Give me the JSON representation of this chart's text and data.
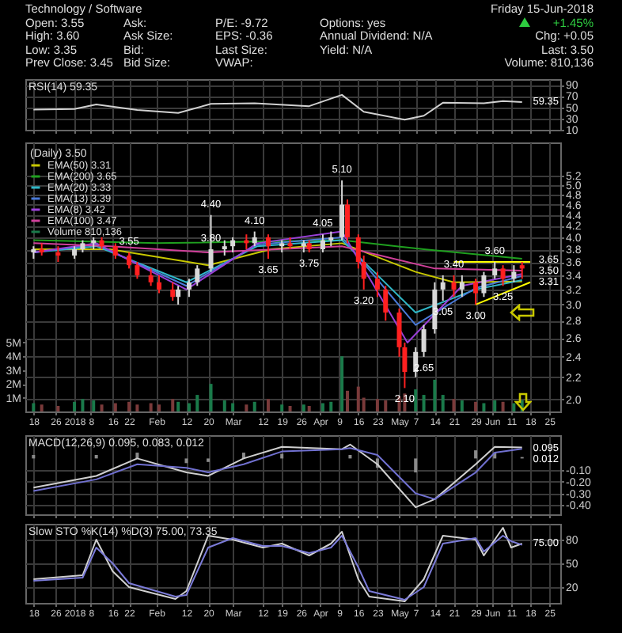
{
  "chart_data": [
    {
      "type": "other",
      "title": "Technology / Software",
      "subtitle": "Friday 15-Jun-2018",
      "annotations": [
        "Open: 3.55",
        "Ask:",
        "P/E: -9.72",
        "Options: yes",
        "+1.45%",
        "High: 3.60",
        "Ask Size:",
        "EPS: -0.36",
        "Annual Dividend: N/A",
        "Chg: +0.05",
        "Low: 3.35",
        "Bid:",
        "Last Size:",
        "Yield: N/A",
        "Last: 3.50",
        "Prev Close: 3.45",
        "Bid Size:",
        "VWAP:",
        "Volume: 810,136"
      ]
    },
    {
      "type": "line",
      "title": "RSI(14) 59.35",
      "tick_labels": "y",
      "grid": true,
      "xlim": [
        "2017-12-15",
        "2018-06-29"
      ],
      "xticks": [
        {
          "value": "2017-12-18",
          "label": null
        },
        {
          "value": "2017-12-26",
          "label": null
        },
        {
          "value": "2018-01-02",
          "label": null
        },
        {
          "value": "2018-01-08",
          "label": null
        },
        {
          "value": "2018-01-16",
          "label": null
        },
        {
          "value": "2018-01-22",
          "label": null
        },
        {
          "value": "2018-02-01",
          "label": null
        },
        {
          "value": "2018-02-12",
          "label": null
        },
        {
          "value": "2018-02-20",
          "label": null
        },
        {
          "value": "2018-03-01",
          "label": null
        },
        {
          "value": "2018-03-12",
          "label": null
        },
        {
          "value": "2018-03-19",
          "label": null
        },
        {
          "value": "2018-03-26",
          "label": null
        },
        {
          "value": "2018-04-02",
          "label": null
        },
        {
          "value": "2018-04-09",
          "label": null
        },
        {
          "value": "2018-04-16",
          "label": null
        },
        {
          "value": "2018-04-23",
          "label": null
        },
        {
          "value": "2018-05-01",
          "label": null
        },
        {
          "value": "2018-05-07",
          "label": null
        },
        {
          "value": "2018-05-14",
          "label": null
        },
        {
          "value": "2018-05-21",
          "label": null
        },
        {
          "value": "2018-05-29",
          "label": null
        },
        {
          "value": "2018-06-04",
          "label": null
        },
        {
          "value": "2018-06-11",
          "label": null
        },
        {
          "value": "2018-06-18",
          "label": null
        },
        {
          "value": "2018-06-25",
          "label": null
        }
      ],
      "ylim": [
        10,
        100
      ],
      "yticks": [
        10,
        30,
        50,
        70,
        90
      ],
      "annotations": [
        "59.35"
      ],
      "series": [
        {
          "color": "#d0d0d0",
          "x": [
            "2017-12-18",
            "2018-01-02",
            "2018-01-10",
            "2018-01-25",
            "2018-02-09",
            "2018-02-21",
            "2018-03-09",
            "2018-03-29",
            "2018-04-10",
            "2018-04-18",
            "2018-05-03",
            "2018-05-10",
            "2018-05-17",
            "2018-06-01",
            "2018-06-08",
            "2018-06-15"
          ],
          "values": [
            46,
            47,
            55,
            45,
            40,
            56,
            57,
            52,
            72,
            42,
            28,
            35,
            58,
            57,
            61,
            59.35
          ]
        }
      ]
    },
    {
      "type": "candlestick",
      "legend_title": "(Daily) 3.50",
      "legend": "top left",
      "grid": true,
      "log": "y",
      "xlim": [
        "2017-12-15",
        "2018-06-29"
      ],
      "xticks": [
        {
          "value": "2017-12-18",
          "label": "18"
        },
        {
          "value": "2017-12-26",
          "label": "26"
        },
        {
          "value": "2018-01-02",
          "label": "2018"
        },
        {
          "value": "2018-01-08",
          "label": "8"
        },
        {
          "value": "2018-01-16",
          "label": "16"
        },
        {
          "value": "2018-01-22",
          "label": "22"
        },
        {
          "value": "2018-02-01",
          "label": "Feb"
        },
        {
          "value": "2018-02-12",
          "label": "12"
        },
        {
          "value": "2018-02-20",
          "label": "20"
        },
        {
          "value": "2018-03-01",
          "label": "Mar"
        },
        {
          "value": "2018-03-12",
          "label": "12"
        },
        {
          "value": "2018-03-19",
          "label": "19"
        },
        {
          "value": "2018-03-26",
          "label": "26"
        },
        {
          "value": "2018-04-02",
          "label": "Apr"
        },
        {
          "value": "2018-04-09",
          "label": "9"
        },
        {
          "value": "2018-04-16",
          "label": "16"
        },
        {
          "value": "2018-04-23",
          "label": "23"
        },
        {
          "value": "2018-05-01",
          "label": "May"
        },
        {
          "value": "2018-05-07",
          "label": "7"
        },
        {
          "value": "2018-05-14",
          "label": "14"
        },
        {
          "value": "2018-05-21",
          "label": "21"
        },
        {
          "value": "2018-05-29",
          "label": "29"
        },
        {
          "value": "2018-06-04",
          "label": "Jun"
        },
        {
          "value": "2018-06-11",
          "label": "11"
        },
        {
          "value": "2018-06-18",
          "label": "18"
        },
        {
          "value": "2018-06-25",
          "label": "25"
        }
      ],
      "ylim": [
        1.9,
        6
      ],
      "yticks": [
        {
          "value": 2,
          "label": "2.0"
        },
        2.2,
        2.4,
        2.6,
        2.8,
        {
          "value": 3,
          "label": "3.0"
        },
        3.2,
        3.4,
        3.6,
        3.8,
        {
          "value": 4,
          "label": "4.0"
        },
        4.2,
        4.4,
        4.6,
        4.8,
        {
          "value": 5,
          "label": "5.0"
        },
        5.2
      ],
      "y2lim": [
        0,
        19500000
      ],
      "y2ticks": [
        {
          "value": 1000000,
          "label": "1M"
        },
        {
          "value": 2000000,
          "label": "2M"
        },
        {
          "value": 3000000,
          "label": "3M"
        },
        {
          "value": 4000000,
          "label": "4M"
        },
        {
          "value": 5000000,
          "label": "5M"
        }
      ],
      "x": [
        "2017-12-18",
        "2017-12-21",
        "2017-12-27",
        "2018-01-02",
        "2018-01-05",
        "2018-01-09",
        "2018-01-12",
        "2018-01-17",
        "2018-01-22",
        "2018-01-25",
        "2018-01-30",
        "2018-02-02",
        "2018-02-07",
        "2018-02-09",
        "2018-02-13",
        "2018-02-16",
        "2018-02-21",
        "2018-02-26",
        "2018-03-01",
        "2018-03-06",
        "2018-03-09",
        "2018-03-14",
        "2018-03-19",
        "2018-03-22",
        "2018-03-27",
        "2018-03-29",
        "2018-04-03",
        "2018-04-06",
        "2018-04-10",
        "2018-04-12",
        "2018-04-16",
        "2018-04-18",
        "2018-04-23",
        "2018-04-26",
        "2018-05-01",
        "2018-05-03",
        "2018-05-07",
        "2018-05-10",
        "2018-05-14",
        "2018-05-17",
        "2018-05-21",
        "2018-05-24",
        "2018-05-29",
        "2018-06-01",
        "2018-06-05",
        "2018-06-08",
        "2018-06-12",
        "2018-06-15"
      ],
      "ohlc": [
        [
          3.75,
          3.85,
          3.65,
          3.8
        ],
        [
          3.8,
          3.9,
          3.7,
          3.75
        ],
        [
          3.75,
          3.85,
          3.6,
          3.7
        ],
        [
          3.7,
          3.85,
          3.65,
          3.8
        ],
        [
          3.8,
          3.95,
          3.75,
          3.9
        ],
        [
          3.9,
          4.0,
          3.8,
          3.95
        ],
        [
          3.95,
          4.0,
          3.8,
          3.85
        ],
        [
          3.85,
          3.9,
          3.65,
          3.7
        ],
        [
          3.7,
          3.75,
          3.5,
          3.55
        ],
        [
          3.55,
          3.6,
          3.35,
          3.4
        ],
        [
          3.4,
          3.5,
          3.25,
          3.3
        ],
        [
          3.3,
          3.4,
          3.15,
          3.2
        ],
        [
          3.2,
          3.3,
          3.05,
          3.1
        ],
        [
          3.1,
          3.25,
          3.0,
          3.2
        ],
        [
          3.2,
          3.35,
          3.1,
          3.3
        ],
        [
          3.3,
          3.55,
          3.25,
          3.5
        ],
        [
          3.5,
          4.4,
          3.45,
          3.8
        ],
        [
          3.8,
          3.95,
          3.7,
          3.85
        ],
        [
          3.85,
          4.0,
          3.75,
          3.95
        ],
        [
          3.95,
          4.05,
          3.8,
          3.9
        ],
        [
          3.9,
          4.1,
          3.85,
          4.0
        ],
        [
          4.0,
          4.05,
          3.65,
          3.85
        ],
        [
          3.85,
          3.95,
          3.75,
          3.9
        ],
        [
          3.9,
          4.0,
          3.8,
          3.85
        ],
        [
          3.85,
          3.95,
          3.75,
          3.9
        ],
        [
          3.9,
          3.95,
          3.75,
          3.8
        ],
        [
          3.8,
          4.05,
          3.75,
          3.95
        ],
        [
          3.95,
          4.1,
          3.85,
          4.0
        ],
        [
          4.0,
          5.1,
          3.95,
          4.6
        ],
        [
          4.6,
          4.7,
          3.9,
          4.0
        ],
        [
          4.0,
          4.05,
          3.5,
          3.6
        ],
        [
          3.6,
          3.7,
          3.2,
          3.35
        ],
        [
          3.35,
          3.45,
          3.1,
          3.2
        ],
        [
          3.2,
          3.25,
          2.8,
          2.9
        ],
        [
          2.9,
          2.95,
          2.4,
          2.5
        ],
        [
          2.5,
          2.55,
          2.1,
          2.25
        ],
        [
          2.25,
          2.5,
          2.2,
          2.45
        ],
        [
          2.45,
          2.75,
          2.4,
          2.7
        ],
        [
          2.7,
          3.3,
          2.65,
          3.2
        ],
        [
          3.2,
          3.4,
          3.05,
          3.3
        ],
        [
          3.3,
          3.4,
          3.1,
          3.2
        ],
        [
          3.2,
          3.4,
          3.1,
          3.3
        ],
        [
          3.3,
          3.35,
          3.0,
          3.15
        ],
        [
          3.15,
          3.45,
          3.1,
          3.4
        ],
        [
          3.4,
          3.6,
          3.35,
          3.5
        ],
        [
          3.5,
          3.55,
          3.25,
          3.35
        ],
        [
          3.35,
          3.55,
          3.3,
          3.45
        ],
        [
          3.55,
          3.6,
          3.35,
          3.5
        ]
      ],
      "colors": [
        "#d8d8d8",
        "#ff2020",
        "#ff2020",
        "#d8d8d8",
        "#d8d8d8",
        "#d8d8d8",
        "#ff2020",
        "#ff2020",
        "#ff2020",
        "#ff2020",
        "#ff2020",
        "#ff2020",
        "#ff2020",
        "#d8d8d8",
        "#d8d8d8",
        "#d8d8d8",
        "#d8d8d8",
        "#d8d8d8",
        "#d8d8d8",
        "#ff2020",
        "#d8d8d8",
        "#ff2020",
        "#d8d8d8",
        "#ff2020",
        "#d8d8d8",
        "#ff2020",
        "#d8d8d8",
        "#d8d8d8",
        "#d8d8d8",
        "#ff2020",
        "#ff2020",
        "#ff2020",
        "#ff2020",
        "#ff2020",
        "#ff2020",
        "#ff2020",
        "#d8d8d8",
        "#d8d8d8",
        "#d8d8d8",
        "#d8d8d8",
        "#ff2020",
        "#d8d8d8",
        "#ff2020",
        "#d8d8d8",
        "#d8d8d8",
        "#ff2020",
        "#d8d8d8",
        "#ff2020"
      ],
      "series": [
        {
          "type": "line",
          "name": "EMA(50) 3.31",
          "color": "#c8c800",
          "x": [
            "2017-12-18",
            "2018-01-15",
            "2018-02-20",
            "2018-03-15",
            "2018-04-10",
            "2018-05-07",
            "2018-05-21",
            "2018-06-15"
          ],
          "values": [
            3.8,
            3.8,
            3.55,
            3.8,
            3.9,
            3.45,
            3.3,
            3.31
          ]
        },
        {
          "type": "line",
          "name": "EMA(200) 3.65",
          "color": "#1fa01f",
          "x": [
            "2017-12-18",
            "2018-02-01",
            "2018-04-10",
            "2018-05-10",
            "2018-06-15"
          ],
          "values": [
            3.95,
            3.9,
            3.95,
            3.8,
            3.65
          ]
        },
        {
          "type": "line",
          "name": "EMA(20) 3.33",
          "color": "#30b8c8",
          "x": [
            "2017-12-18",
            "2018-01-10",
            "2018-02-12",
            "2018-03-10",
            "2018-04-10",
            "2018-05-07",
            "2018-05-29",
            "2018-06-15"
          ],
          "values": [
            3.75,
            3.85,
            3.3,
            3.85,
            3.95,
            2.9,
            3.2,
            3.33
          ]
        },
        {
          "type": "line",
          "name": "EMA(13) 3.39",
          "color": "#4a7ad8",
          "x": [
            "2017-12-18",
            "2018-01-10",
            "2018-02-12",
            "2018-03-10",
            "2018-04-10",
            "2018-05-07",
            "2018-05-29",
            "2018-06-15"
          ],
          "values": [
            3.75,
            3.88,
            3.25,
            3.88,
            4.0,
            2.75,
            3.22,
            3.39
          ]
        },
        {
          "type": "line",
          "name": "EMA(8) 3.42",
          "color": "#9a40d8",
          "x": [
            "2017-12-18",
            "2018-01-10",
            "2018-02-12",
            "2018-03-10",
            "2018-04-10",
            "2018-05-04",
            "2018-05-24",
            "2018-06-15"
          ],
          "values": [
            3.75,
            3.9,
            3.2,
            3.9,
            4.1,
            2.55,
            3.25,
            3.42
          ]
        },
        {
          "type": "line",
          "name": "EMA(100) 3.47",
          "color": "#d0409a",
          "x": [
            "2017-12-18",
            "2018-01-15",
            "2018-02-20",
            "2018-04-10",
            "2018-05-14",
            "2018-06-15"
          ],
          "values": [
            3.9,
            3.85,
            3.75,
            3.85,
            3.5,
            3.47
          ]
        },
        {
          "type": "line",
          "color": "#ffff00",
          "x": [
            "2018-05-21",
            "2018-06-18"
          ],
          "values": [
            3.6,
            3.6
          ]
        },
        {
          "type": "line",
          "color": "#ffff00",
          "x": [
            "2018-05-29",
            "2018-06-18"
          ],
          "values": [
            3.0,
            3.3
          ]
        },
        {
          "type": "bar",
          "axis": "y2",
          "name": "Volume 810,136",
          "color": "#1a7a4a",
          "colors": [
            "#1a7a4a",
            "#7a3a3a",
            "#7a3a3a",
            "#1a7a4a",
            "#1a7a4a",
            "#1a7a4a",
            "#7a3a3a",
            "#7a3a3a",
            "#7a3a3a",
            "#7a3a3a",
            "#7a3a3a",
            "#7a3a3a",
            "#7a3a3a",
            "#1a7a4a",
            "#1a7a4a",
            "#1a7a4a",
            "#1a7a4a",
            "#1a7a4a",
            "#1a7a4a",
            "#7a3a3a",
            "#1a7a4a",
            "#7a3a3a",
            "#1a7a4a",
            "#7a3a3a",
            "#1a7a4a",
            "#7a3a3a",
            "#1a7a4a",
            "#1a7a4a",
            "#1a7a4a",
            "#7a3a3a",
            "#7a3a3a",
            "#7a3a3a",
            "#7a3a3a",
            "#7a3a3a",
            "#7a3a3a",
            "#7a3a3a",
            "#1a7a4a",
            "#1a7a4a",
            "#1a7a4a",
            "#1a7a4a",
            "#7a3a3a",
            "#1a7a4a",
            "#7a3a3a",
            "#1a7a4a",
            "#1a7a4a",
            "#7a3a3a",
            "#1a7a4a",
            "#1a7a4a"
          ],
          "values": [
            600000,
            500000,
            400000,
            700000,
            900000,
            800000,
            500000,
            600000,
            700000,
            500000,
            600000,
            500000,
            900000,
            700000,
            600000,
            1200000,
            2000000,
            800000,
            600000,
            500000,
            700000,
            900000,
            500000,
            400000,
            500000,
            400000,
            600000,
            700000,
            4000000,
            1500000,
            1800000,
            1000000,
            900000,
            800000,
            1100000,
            1300000,
            1600000,
            1200000,
            2300000,
            1200000,
            900000,
            800000,
            700000,
            600000,
            800000,
            700000,
            600000,
            810136
          ]
        }
      ],
      "annotations": [
        {
          "text": "3.55",
          "x": "2018-01-22",
          "y": 3.75
        },
        {
          "text": "3.80",
          "x": "2018-02-21",
          "y": 3.8
        },
        {
          "text": "4.40",
          "x": "2018-02-21",
          "y": 4.4
        },
        {
          "text": "4.10",
          "x": "2018-03-09",
          "y": 4.1
        },
        {
          "text": "3.65",
          "x": "2018-03-14",
          "y": 3.65
        },
        {
          "text": "3.75",
          "x": "2018-03-29",
          "y": 3.75
        },
        {
          "text": "4.05",
          "x": "2018-04-03",
          "y": 4.05
        },
        {
          "text": "5.10",
          "x": "2018-04-10",
          "y": 5.1
        },
        {
          "text": "3.20",
          "x": "2018-04-18",
          "y": 3.2
        },
        {
          "text": "2.10",
          "x": "2018-05-03",
          "y": 2.1
        },
        {
          "text": "2.65",
          "x": "2018-05-10",
          "y": 2.4
        },
        {
          "text": "3.05",
          "x": "2018-05-17",
          "y": 3.05
        },
        {
          "text": "3.40",
          "x": "2018-05-21",
          "y": 3.4
        },
        {
          "text": "3.00",
          "x": "2018-05-29",
          "y": 3.0
        },
        {
          "text": "3.60",
          "x": "2018-06-05",
          "y": 3.6
        },
        {
          "text": "3.25",
          "x": "2018-06-08",
          "y": 3.25
        },
        "3.65",
        "3.50",
        "3.31"
      ]
    },
    {
      "type": "line",
      "title": "MACD(12,26,9) 0.095, 0.083, 0.012",
      "tick_labels": "y",
      "grid": true,
      "xlim": [
        "2017-12-15",
        "2018-06-29"
      ],
      "xticks": [
        {
          "value": "2017-12-18",
          "label": null
        },
        {
          "value": "2017-12-26",
          "label": null
        },
        {
          "value": "2018-01-02",
          "label": null
        },
        {
          "value": "2018-01-08",
          "label": null
        },
        {
          "value": "2018-01-16",
          "label": null
        },
        {
          "value": "2018-01-22",
          "label": null
        },
        {
          "value": "2018-02-01",
          "label": null
        },
        {
          "value": "2018-02-12",
          "label": null
        },
        {
          "value": "2018-02-20",
          "label": null
        },
        {
          "value": "2018-03-01",
          "label": null
        },
        {
          "value": "2018-03-12",
          "label": null
        },
        {
          "value": "2018-03-19",
          "label": null
        },
        {
          "value": "2018-03-26",
          "label": null
        },
        {
          "value": "2018-04-02",
          "label": null
        },
        {
          "value": "2018-04-09",
          "label": null
        },
        {
          "value": "2018-04-16",
          "label": null
        },
        {
          "value": "2018-04-23",
          "label": null
        },
        {
          "value": "2018-05-01",
          "label": null
        },
        {
          "value": "2018-05-07",
          "label": null
        },
        {
          "value": "2018-05-14",
          "label": null
        },
        {
          "value": "2018-05-21",
          "label": null
        },
        {
          "value": "2018-05-29",
          "label": null
        },
        {
          "value": "2018-06-04",
          "label": null
        },
        {
          "value": "2018-06-11",
          "label": null
        },
        {
          "value": "2018-06-18",
          "label": null
        },
        {
          "value": "2018-06-25",
          "label": null
        }
      ],
      "ylim": [
        -0.48,
        0.2
      ],
      "yticks": [
        {
          "value": -0.4,
          "label": "-0.40"
        },
        {
          "value": -0.3,
          "label": "-0.30"
        },
        {
          "value": -0.2,
          "label": "-0.20"
        },
        {
          "value": -0.1,
          "label": "-0.10"
        }
      ],
      "annotations": [
        "0.095",
        "0.012"
      ],
      "series": [
        {
          "type": "bar",
          "color": "#8a8a8a",
          "x": [
            "2017-12-18",
            "2018-01-10",
            "2018-01-25",
            "2018-02-12",
            "2018-02-20",
            "2018-03-05",
            "2018-03-19",
            "2018-04-10",
            "2018-04-13",
            "2018-04-23",
            "2018-05-07",
            "2018-05-14",
            "2018-05-29",
            "2018-06-05",
            "2018-06-15"
          ],
          "values": [
            0.03,
            0.03,
            0.05,
            -0.04,
            -0.03,
            0.05,
            0.04,
            0.0,
            0.03,
            -0.08,
            -0.12,
            0.0,
            0.07,
            0.05,
            0.012
          ]
        },
        {
          "type": "line",
          "color": "#d0d0d0",
          "x": [
            "2017-12-18",
            "2018-01-10",
            "2018-01-25",
            "2018-02-12",
            "2018-02-20",
            "2018-03-05",
            "2018-03-19",
            "2018-04-10",
            "2018-04-13",
            "2018-04-23",
            "2018-05-07",
            "2018-05-14",
            "2018-05-29",
            "2018-06-05",
            "2018-06-15"
          ],
          "values": [
            -0.25,
            -0.15,
            0.0,
            -0.12,
            -0.15,
            0.0,
            0.1,
            0.08,
            0.12,
            -0.05,
            -0.42,
            -0.35,
            -0.05,
            0.1,
            0.095
          ]
        },
        {
          "type": "line",
          "color": "#7070d0",
          "x": [
            "2017-12-18",
            "2018-01-10",
            "2018-01-25",
            "2018-02-12",
            "2018-02-20",
            "2018-03-05",
            "2018-03-19",
            "2018-04-10",
            "2018-04-13",
            "2018-04-23",
            "2018-05-07",
            "2018-05-14",
            "2018-05-29",
            "2018-06-05",
            "2018-06-15"
          ],
          "values": [
            -0.28,
            -0.18,
            -0.05,
            -0.08,
            -0.12,
            -0.05,
            0.06,
            0.08,
            0.09,
            0.03,
            -0.3,
            -0.35,
            -0.12,
            0.05,
            0.083
          ]
        }
      ]
    },
    {
      "type": "line",
      "title": "Slow STO %K(14) %D(3) 75.00, 73.35",
      "grid": true,
      "xlim": [
        "2017-12-15",
        "2018-06-29"
      ],
      "xticks": [
        {
          "value": "2017-12-18",
          "label": "18"
        },
        {
          "value": "2017-12-26",
          "label": "26"
        },
        {
          "value": "2018-01-02",
          "label": "2018"
        },
        {
          "value": "2018-01-08",
          "label": "8"
        },
        {
          "value": "2018-01-16",
          "label": "16"
        },
        {
          "value": "2018-01-22",
          "label": "22"
        },
        {
          "value": "2018-02-01",
          "label": "Feb"
        },
        {
          "value": "2018-02-12",
          "label": "12"
        },
        {
          "value": "2018-02-20",
          "label": "20"
        },
        {
          "value": "2018-03-01",
          "label": "Mar"
        },
        {
          "value": "2018-03-12",
          "label": "12"
        },
        {
          "value": "2018-03-19",
          "label": "19"
        },
        {
          "value": "2018-03-26",
          "label": "26"
        },
        {
          "value": "2018-04-02",
          "label": "Apr"
        },
        {
          "value": "2018-04-09",
          "label": "9"
        },
        {
          "value": "2018-04-16",
          "label": "16"
        },
        {
          "value": "2018-04-23",
          "label": "23"
        },
        {
          "value": "2018-05-01",
          "label": "May"
        },
        {
          "value": "2018-05-07",
          "label": "7"
        },
        {
          "value": "2018-05-14",
          "label": "14"
        },
        {
          "value": "2018-05-21",
          "label": "21"
        },
        {
          "value": "2018-05-29",
          "label": "29"
        },
        {
          "value": "2018-06-04",
          "label": "Jun"
        },
        {
          "value": "2018-06-11",
          "label": "11"
        },
        {
          "value": "2018-06-18",
          "label": "18"
        },
        {
          "value": "2018-06-25",
          "label": "25"
        }
      ],
      "ylim": [
        0,
        100
      ],
      "yticks": [
        20,
        50,
        80
      ],
      "annotations": [
        "75.00"
      ],
      "series": [
        {
          "type": "line",
          "color": "#d0d0d0",
          "x": [
            "2017-12-18",
            "2018-01-05",
            "2018-01-10",
            "2018-01-16",
            "2018-01-22",
            "2018-02-08",
            "2018-02-12",
            "2018-02-20",
            "2018-03-01",
            "2018-03-12",
            "2018-03-19",
            "2018-03-29",
            "2018-04-06",
            "2018-04-10",
            "2018-04-16",
            "2018-04-20",
            "2018-05-03",
            "2018-05-10",
            "2018-05-17",
            "2018-05-29",
            "2018-06-01",
            "2018-06-08",
            "2018-06-11",
            "2018-06-15"
          ],
          "values": [
            30,
            35,
            80,
            40,
            20,
            5,
            15,
            85,
            80,
            70,
            75,
            60,
            75,
            90,
            30,
            8,
            2,
            30,
            85,
            80,
            60,
            95,
            70,
            75
          ]
        },
        {
          "type": "line",
          "color": "#7b7bd8",
          "x": [
            "2017-12-18",
            "2018-01-05",
            "2018-01-10",
            "2018-01-16",
            "2018-01-22",
            "2018-02-08",
            "2018-02-12",
            "2018-02-20",
            "2018-03-01",
            "2018-03-12",
            "2018-03-19",
            "2018-03-29",
            "2018-04-06",
            "2018-04-10",
            "2018-04-16",
            "2018-04-20",
            "2018-05-03",
            "2018-05-10",
            "2018-05-17",
            "2018-05-29",
            "2018-06-01",
            "2018-06-08",
            "2018-06-11",
            "2018-06-15"
          ],
          "values": [
            28,
            32,
            70,
            50,
            25,
            8,
            10,
            70,
            82,
            72,
            72,
            63,
            70,
            85,
            45,
            15,
            4,
            20,
            75,
            82,
            65,
            85,
            78,
            73.35
          ]
        }
      ]
    }
  ]
}
